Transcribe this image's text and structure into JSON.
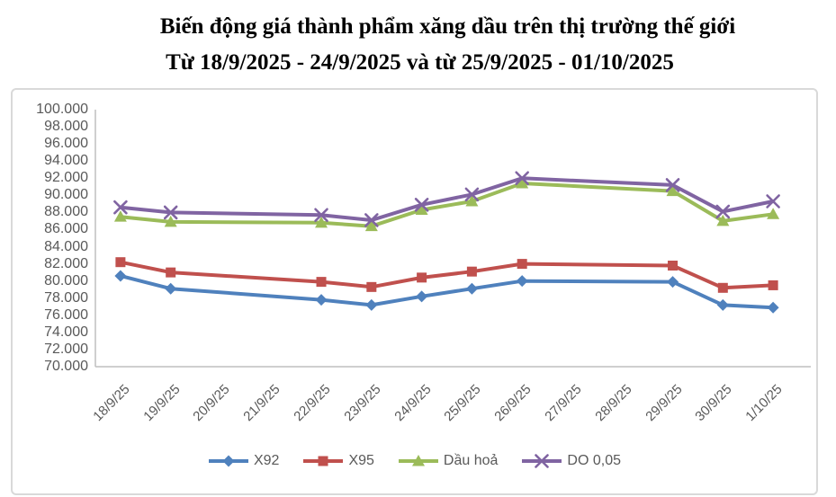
{
  "title": {
    "line1": "Biến động giá thành phẩm xăng dầu trên thị trường thế giới",
    "line2": "Từ 18/9/2025 - 24/9/2025 và từ 25/9/2025 - 01/10/2025"
  },
  "colors": {
    "axis_line": "#BFBFBF",
    "axis_text": "#595959",
    "chart_border": "#D9D9D9",
    "title_text": "#000000",
    "series_x92": "#4F81BD",
    "series_x95": "#C0504D",
    "series_dau_hoa": "#9BBB59",
    "series_do_005": "#8064A2"
  },
  "chart_data": {
    "type": "line",
    "title": "Biến động giá thành phẩm xăng dầu trên thị trường thế giới Từ 18/9/2025 - 24/9/2025 và từ 25/9/2025 - 01/10/2025",
    "xlabel": "",
    "ylabel": "",
    "grid": false,
    "legend_position": "bottom",
    "ylim": [
      70,
      100
    ],
    "ytick_step": 2,
    "ytick_labels": [
      "100.000",
      "98.000",
      "96.000",
      "94.000",
      "92.000",
      "90.000",
      "88.000",
      "86.000",
      "84.000",
      "82.000",
      "80.000",
      "78.000",
      "76.000",
      "74.000",
      "72.000",
      "70.000"
    ],
    "value_unit_note": "values in thousands, matching axis labels (e.g. 80.6 = 80.600)",
    "categories": [
      "18/9/25",
      "19/9/25",
      "20/9/25",
      "21/9/25",
      "22/9/25",
      "23/9/25",
      "24/9/25",
      "25/9/25",
      "26/9/25",
      "27/9/25",
      "28/9/25",
      "29/9/25",
      "30/9/25",
      "1/10/25"
    ],
    "series": [
      {
        "name": "X92",
        "color": "#4F81BD",
        "marker": "diamond",
        "values": [
          80.6,
          79.1,
          null,
          null,
          77.8,
          77.2,
          78.2,
          79.1,
          80.0,
          null,
          null,
          79.9,
          77.2,
          76.9
        ]
      },
      {
        "name": "X95",
        "color": "#C0504D",
        "marker": "square",
        "values": [
          82.2,
          81.0,
          null,
          null,
          79.9,
          79.3,
          80.4,
          81.1,
          82.0,
          null,
          null,
          81.8,
          79.2,
          79.5
        ]
      },
      {
        "name": "Dầu hoả",
        "color": "#9BBB59",
        "marker": "triangle",
        "values": [
          87.5,
          86.9,
          null,
          null,
          86.8,
          86.4,
          88.3,
          89.3,
          91.4,
          null,
          null,
          90.5,
          87.0,
          87.8
        ]
      },
      {
        "name": "DO 0,05",
        "color": "#8064A2",
        "marker": "x",
        "values": [
          88.6,
          88.0,
          null,
          null,
          87.7,
          87.1,
          88.9,
          90.1,
          92.0,
          null,
          null,
          91.2,
          88.1,
          89.3
        ]
      }
    ]
  }
}
